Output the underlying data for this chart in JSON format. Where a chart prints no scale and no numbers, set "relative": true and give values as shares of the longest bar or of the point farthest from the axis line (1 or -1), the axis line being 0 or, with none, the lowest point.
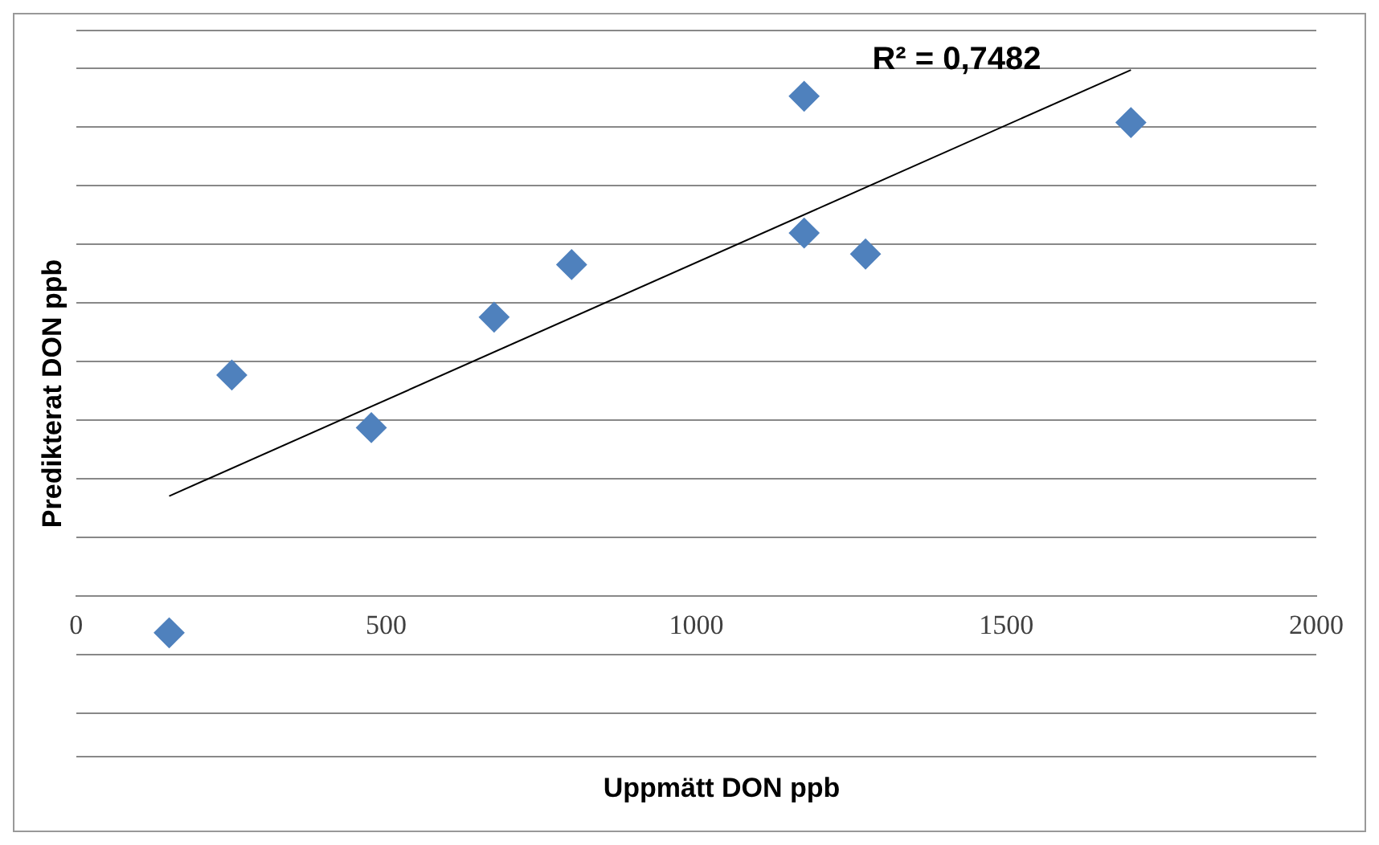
{
  "chart_data": {
    "type": "scatter",
    "xlabel": "Uppmätt DON ppb",
    "ylabel": "Predikterat DON ppb",
    "relative": true,
    "xlim": [
      0,
      2000
    ],
    "xticks": [
      0,
      500,
      1000,
      1500,
      2000
    ],
    "grid": "y",
    "legend": false,
    "marker": "diamond",
    "annotations": [
      "R² = 0,7482"
    ],
    "series": [
      {
        "type": "scatter",
        "color": "#4f81bd",
        "x": [
          150,
          251,
          476,
          674,
          799,
          1174,
          1174,
          1273,
          1701
        ],
        "values": [
          -0.07,
          0.42,
          0.32,
          0.53,
          0.63,
          0.95,
          0.69,
          0.65,
          0.9
        ]
      },
      {
        "type": "line",
        "color": "#000000",
        "x": [
          150,
          1701
        ],
        "values": [
          0.19,
          1.0
        ],
        "marker": "none"
      }
    ]
  }
}
